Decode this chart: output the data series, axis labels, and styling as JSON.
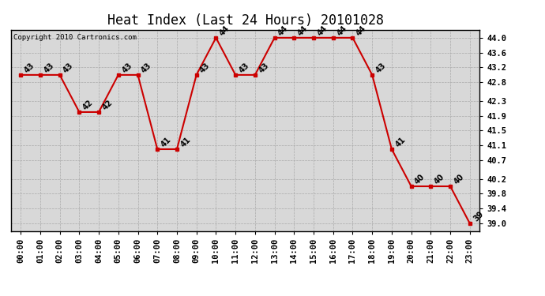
{
  "title": "Heat Index (Last 24 Hours) 20101028",
  "copyright": "Copyright 2010 Cartronics.com",
  "hours": [
    "00:00",
    "01:00",
    "02:00",
    "03:00",
    "04:00",
    "05:00",
    "06:00",
    "07:00",
    "08:00",
    "09:00",
    "10:00",
    "11:00",
    "12:00",
    "13:00",
    "14:00",
    "15:00",
    "16:00",
    "17:00",
    "18:00",
    "19:00",
    "20:00",
    "21:00",
    "22:00",
    "23:00"
  ],
  "values": [
    43,
    43,
    43,
    42,
    42,
    43,
    43,
    41,
    41,
    43,
    44,
    43,
    43,
    44,
    44,
    44,
    44,
    44,
    43,
    41,
    40,
    40,
    40,
    39
  ],
  "ylim_min": 38.8,
  "ylim_max": 44.22,
  "yticks": [
    39.0,
    39.4,
    39.8,
    40.2,
    40.7,
    41.1,
    41.5,
    41.9,
    42.3,
    42.8,
    43.2,
    43.6,
    44.0
  ],
  "ytick_labels": [
    "39.0",
    "39.4",
    "39.8",
    "40.2",
    "40.7",
    "41.1",
    "41.5",
    "41.9",
    "42.3",
    "42.8",
    "43.2",
    "43.6",
    "44.0"
  ],
  "line_color": "#cc0000",
  "marker_color": "#cc0000",
  "bg_color": "#ffffff",
  "plot_bg_color": "#d8d8d8",
  "grid_color": "#aaaaaa",
  "title_fontsize": 12,
  "label_fontsize": 7.5,
  "annotation_fontsize": 7
}
